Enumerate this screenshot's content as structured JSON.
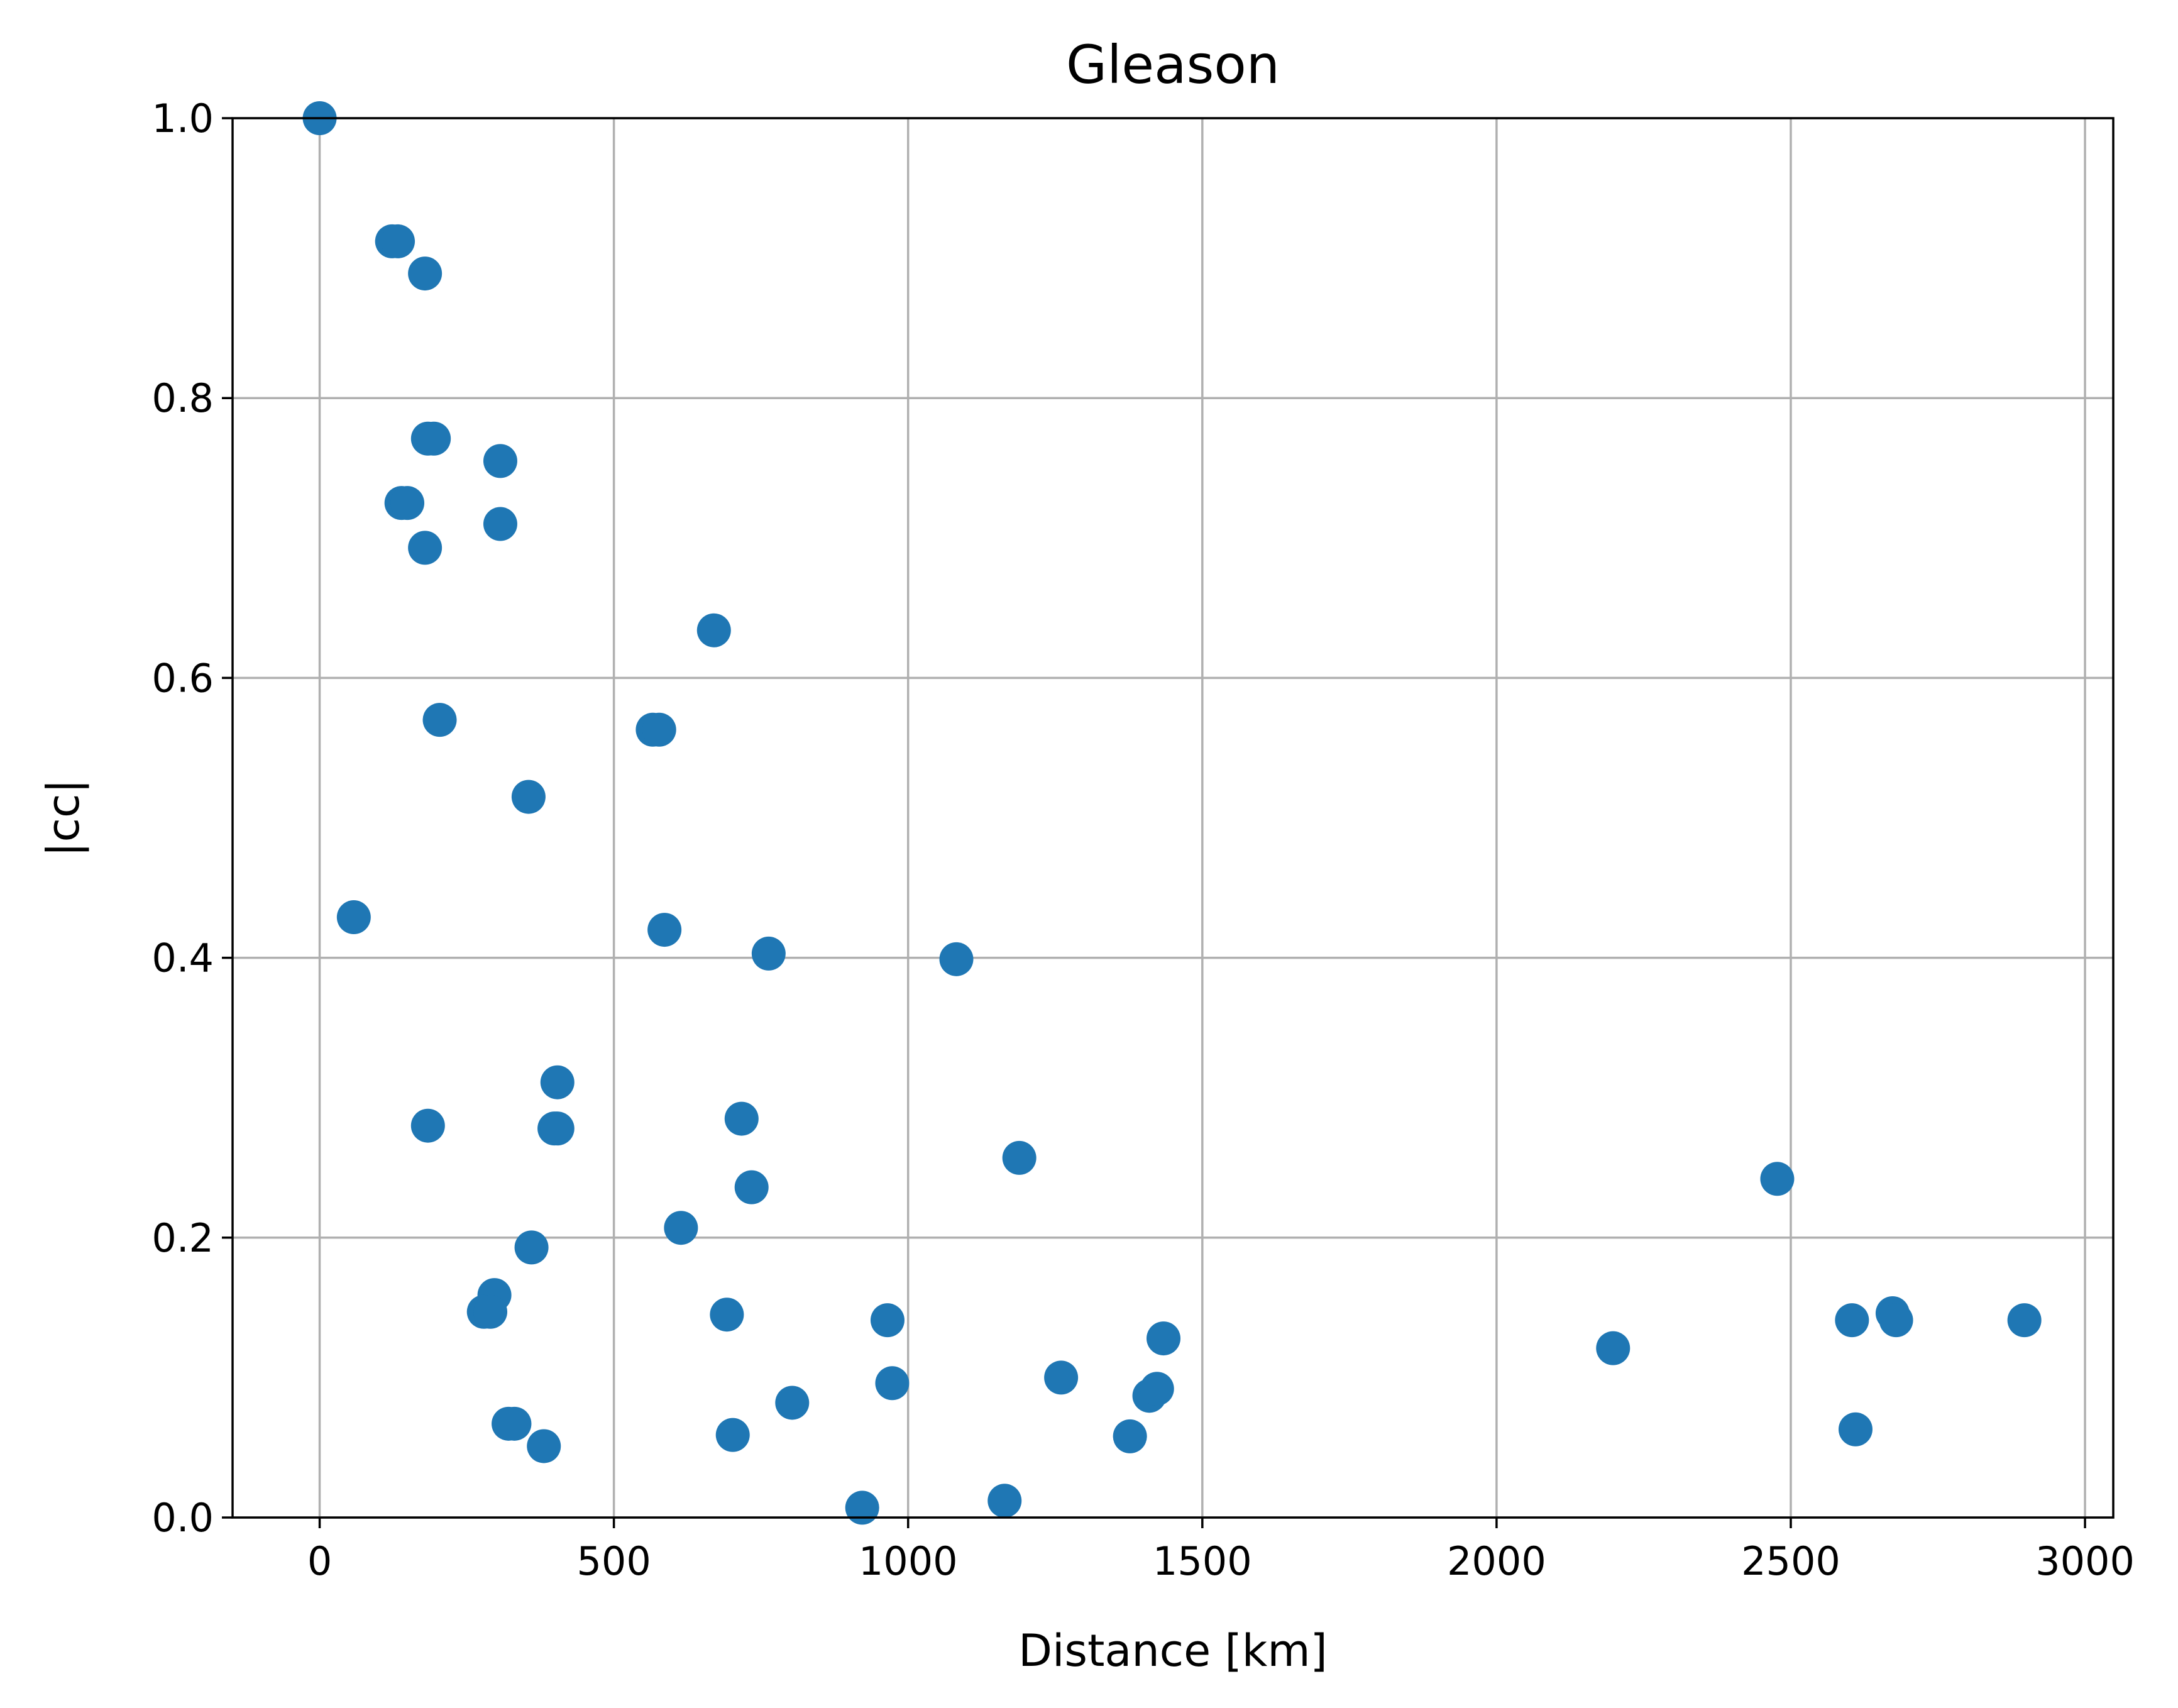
{
  "chart_data": {
    "type": "scatter",
    "title": "Gleason",
    "xlabel": "Distance [km]",
    "ylabel": "|cc|",
    "xlim": [
      -148,
      3048
    ],
    "ylim": [
      0,
      1
    ],
    "xticks": [
      0,
      500,
      1000,
      1500,
      2000,
      2500,
      3000
    ],
    "yticks": [
      0.0,
      0.2,
      0.4,
      0.6,
      0.8,
      1.0
    ],
    "xtick_labels": [
      "0",
      "500",
      "1000",
      "1500",
      "2000",
      "2500",
      "3000"
    ],
    "ytick_labels": [
      "0.0",
      "0.2",
      "0.4",
      "0.6",
      "0.8",
      "1.0"
    ],
    "grid": true,
    "marker_color": "#1f77b4",
    "x": [
      0,
      123,
      133,
      179,
      184,
      194,
      139,
      149,
      307,
      307,
      179,
      670,
      204,
      566,
      577,
      355,
      58,
      586,
      763,
      1082,
      404,
      184,
      399,
      404,
      717,
      734,
      1189,
      614,
      360,
      297,
      279,
      290,
      692,
      965,
      2477,
      2604,
      2673,
      2679,
      2897,
      1434,
      2198,
      973,
      1260,
      1410,
      1423,
      321,
      331,
      803,
      381,
      702,
      1377,
      2610,
      922,
      1164
    ],
    "y": [
      1.0,
      0.912,
      0.912,
      0.889,
      0.771,
      0.771,
      0.725,
      0.725,
      0.755,
      0.71,
      0.693,
      0.634,
      0.57,
      0.563,
      0.563,
      0.515,
      0.429,
      0.42,
      0.403,
      0.399,
      0.311,
      0.28,
      0.278,
      0.278,
      0.285,
      0.236,
      0.257,
      0.207,
      0.193,
      0.159,
      0.147,
      0.147,
      0.145,
      0.141,
      0.242,
      0.141,
      0.146,
      0.141,
      0.141,
      0.128,
      0.121,
      0.096,
      0.1,
      0.087,
      0.092,
      0.067,
      0.067,
      0.082,
      0.051,
      0.059,
      0.058,
      0.063,
      0.007,
      0.012
    ]
  }
}
